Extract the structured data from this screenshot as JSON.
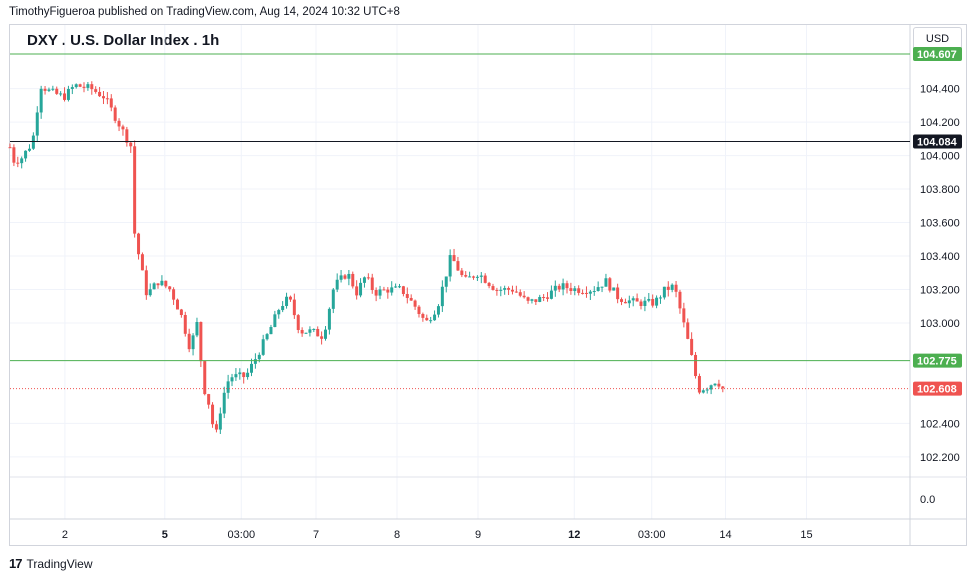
{
  "header": {
    "published": "TimothyFigueroa published on TradingView.com, Aug 14, 2024 10:32 UTC+8"
  },
  "footer": {
    "logo_text": "TradingView"
  },
  "colors": {
    "up": "#26a69a",
    "down": "#ef5350",
    "line_green": "#4caf50",
    "line_black": "#131722",
    "grid": "#f0f3fa"
  },
  "chart_data": {
    "type": "candlestick",
    "title": "DXY . U.S. Dollar Index . 1h",
    "currency": "USD",
    "ylim": [
      102.08,
      104.78
    ],
    "y_ticks": [
      "104.400",
      "104.200",
      "104.000",
      "103.800",
      "103.600",
      "103.400",
      "103.200",
      "103.000",
      "102.400",
      "102.200"
    ],
    "volume_axis_label": "0.0",
    "x_ticks": [
      {
        "label": "2",
        "bold": false,
        "pos": 0.061
      },
      {
        "label": "5",
        "bold": true,
        "pos": 0.172
      },
      {
        "label": "03:00",
        "bold": false,
        "pos": 0.257
      },
      {
        "label": "7",
        "bold": false,
        "pos": 0.34
      },
      {
        "label": "8",
        "bold": false,
        "pos": 0.43
      },
      {
        "label": "9",
        "bold": false,
        "pos": 0.52
      },
      {
        "label": "12",
        "bold": true,
        "pos": 0.627
      },
      {
        "label": "03:00",
        "bold": false,
        "pos": 0.713
      },
      {
        "label": "14",
        "bold": false,
        "pos": 0.795
      },
      {
        "label": "15",
        "bold": false,
        "pos": 0.885
      }
    ],
    "horizontal_lines": [
      {
        "value": 104.607,
        "label": "104.607",
        "color": "#4caf50",
        "style": "solid"
      },
      {
        "value": 104.084,
        "label": "104.084",
        "color": "#131722",
        "style": "solid"
      },
      {
        "value": 102.775,
        "label": "102.775",
        "color": "#4caf50",
        "style": "solid"
      },
      {
        "value": 102.608,
        "label": "102.608",
        "color": "#ef5350",
        "style": "dotted"
      }
    ],
    "waypoints": [
      [
        0,
        104.05
      ],
      [
        0.004,
        103.97
      ],
      [
        0.012,
        103.98
      ],
      [
        0.025,
        104.08
      ],
      [
        0.034,
        104.42
      ],
      [
        0.045,
        104.38
      ],
      [
        0.06,
        104.35
      ],
      [
        0.072,
        104.42
      ],
      [
        0.09,
        104.4
      ],
      [
        0.105,
        104.35
      ],
      [
        0.122,
        104.18
      ],
      [
        0.135,
        104.05
      ],
      [
        0.138,
        103.55
      ],
      [
        0.145,
        103.35
      ],
      [
        0.152,
        103.17
      ],
      [
        0.165,
        103.25
      ],
      [
        0.178,
        103.2
      ],
      [
        0.19,
        103.05
      ],
      [
        0.2,
        102.85
      ],
      [
        0.208,
        103.0
      ],
      [
        0.215,
        102.62
      ],
      [
        0.222,
        102.5
      ],
      [
        0.228,
        102.3
      ],
      [
        0.236,
        102.55
      ],
      [
        0.244,
        102.68
      ],
      [
        0.262,
        102.68
      ],
      [
        0.274,
        102.8
      ],
      [
        0.288,
        102.95
      ],
      [
        0.3,
        103.1
      ],
      [
        0.31,
        103.15
      ],
      [
        0.322,
        102.95
      ],
      [
        0.335,
        102.95
      ],
      [
        0.348,
        102.92
      ],
      [
        0.36,
        103.22
      ],
      [
        0.375,
        103.3
      ],
      [
        0.385,
        103.18
      ],
      [
        0.395,
        103.28
      ],
      [
        0.405,
        103.18
      ],
      [
        0.42,
        103.2
      ],
      [
        0.435,
        103.2
      ],
      [
        0.45,
        103.1
      ],
      [
        0.462,
        103.0
      ],
      [
        0.475,
        103.1
      ],
      [
        0.49,
        103.4
      ],
      [
        0.505,
        103.25
      ],
      [
        0.52,
        103.3
      ],
      [
        0.54,
        103.2
      ],
      [
        0.56,
        103.2
      ],
      [
        0.575,
        103.12
      ],
      [
        0.592,
        103.15
      ],
      [
        0.612,
        103.22
      ],
      [
        0.63,
        103.2
      ],
      [
        0.648,
        103.2
      ],
      [
        0.662,
        103.25
      ],
      [
        0.676,
        103.15
      ],
      [
        0.696,
        103.12
      ],
      [
        0.716,
        103.12
      ],
      [
        0.728,
        103.2
      ],
      [
        0.738,
        103.22
      ],
      [
        0.746,
        103.05
      ],
      [
        0.752,
        102.92
      ],
      [
        0.758,
        102.78
      ],
      [
        0.765,
        102.6
      ],
      [
        0.775,
        102.62
      ],
      [
        0.785,
        102.66
      ],
      [
        0.792,
        102.61
      ]
    ]
  }
}
